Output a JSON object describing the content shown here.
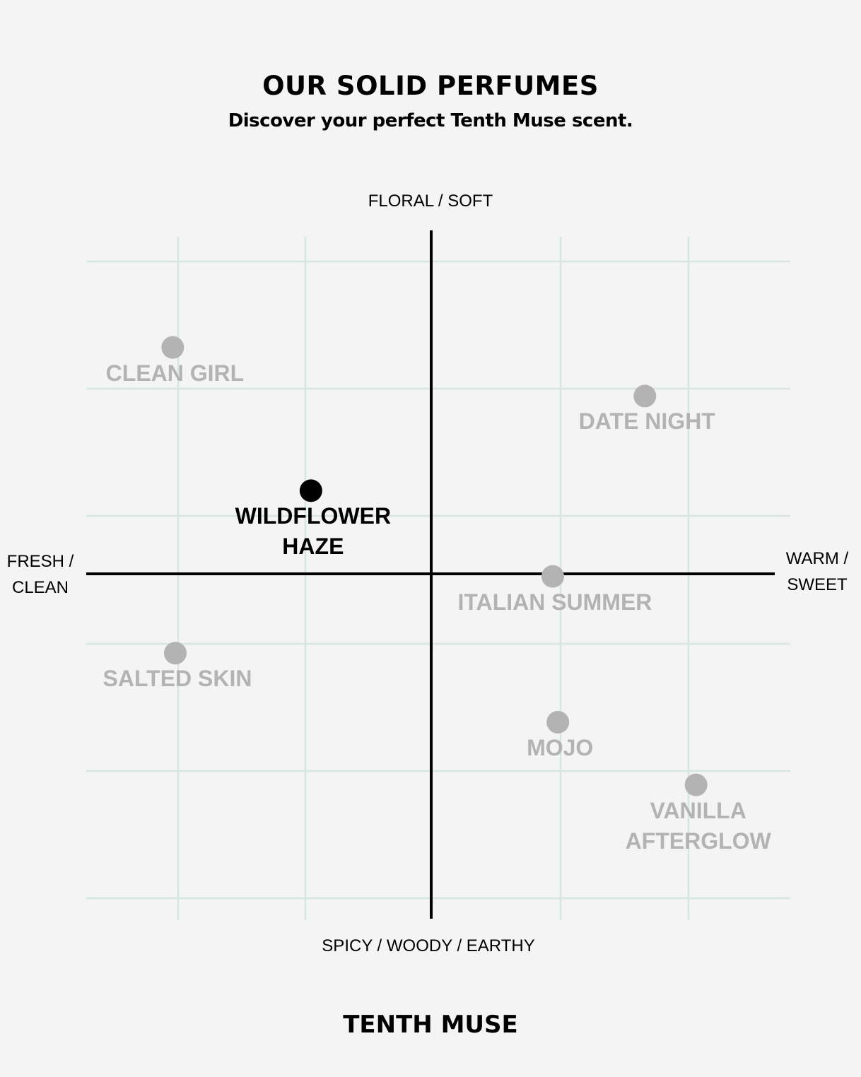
{
  "header": {
    "title": "OUR SOLID PERFUMES",
    "subtitle": "Discover your perfect Tenth Muse scent."
  },
  "footer": {
    "brand": "TENTH MUSE"
  },
  "chart_data": {
    "type": "scatter",
    "title": "OUR SOLID PERFUMES",
    "axes": {
      "top": "FLORAL / SOFT",
      "bottom": "SPICY / WOODY / EARTHY",
      "left": "FRESH /\nCLEAN",
      "right": "WARM /\nSWEET"
    },
    "xlim": [
      -2.7,
      2.8
    ],
    "ylim": [
      -2.6,
      2.7
    ],
    "grid": true,
    "colors": {
      "highlight": "#000000",
      "muted": "#b3b3b3",
      "grid": "#d6e6e0",
      "axis": "#000000"
    },
    "points": [
      {
        "name": "CLEAN GIRL",
        "x": -2.02,
        "y": 1.77,
        "highlight": false
      },
      {
        "name": "DATE NIGHT",
        "x": 1.67,
        "y": 1.39,
        "highlight": false
      },
      {
        "name": "WILDFLOWER\nHAZE",
        "x": -0.94,
        "y": 0.65,
        "highlight": true
      },
      {
        "name": "ITALIAN SUMMER",
        "x": 0.95,
        "y": -0.02,
        "highlight": false
      },
      {
        "name": "SALTED SKIN",
        "x": -2.0,
        "y": -0.62,
        "highlight": false
      },
      {
        "name": "MOJO",
        "x": 0.99,
        "y": -1.16,
        "highlight": false
      },
      {
        "name": "VANILLA\nAFTERGLOW",
        "x": 2.07,
        "y": -1.65,
        "highlight": false
      }
    ]
  }
}
